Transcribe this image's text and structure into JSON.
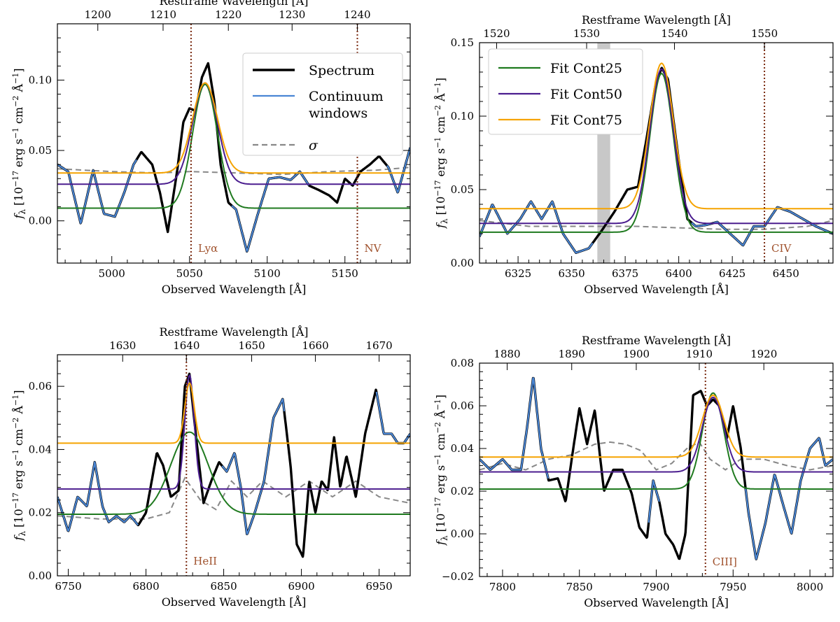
{
  "colors": {
    "spectrum": "#000000",
    "continuum": "#4a86d4",
    "sigma": "#888888",
    "fit_cont25": "#1f7a1f",
    "fit_cont50": "#4b1d8f",
    "fit_cont75": "#f5a300",
    "line_marker": "#7a2a10",
    "line_label": "#a0522d",
    "exclusion_band": "#c8c8c8"
  },
  "legends": {
    "left": [
      {
        "key": "spectrum",
        "label": "Spectrum"
      },
      {
        "key": "continuum",
        "label": "Continuum",
        "label2": "windows"
      },
      {
        "key": "sigma",
        "label": "σ"
      }
    ],
    "right": [
      {
        "key": "fit_cont25",
        "label": "Fit Cont25"
      },
      {
        "key": "fit_cont50",
        "label": "Fit Cont50"
      },
      {
        "key": "fit_cont75",
        "label": "Fit Cont75"
      }
    ]
  },
  "chart_data": [
    {
      "type": "line",
      "xlabel": "Observed Wavelength [Å]",
      "ylabel": "f_λ [10^-17 erg s^-1 cm^-2 Å^-1]",
      "top_xlabel": "Restframe Wavelength [Å]",
      "xlim": [
        4965,
        5192
      ],
      "ylim": [
        -0.03,
        0.14
      ],
      "xticks": [
        5000,
        5050,
        5100,
        5150
      ],
      "yticks": [
        0.0,
        0.05,
        0.1
      ],
      "ytick_labels": [
        "0.00",
        "0.05",
        "0.10"
      ],
      "top_ticks": [
        1200,
        1210,
        1220,
        1230,
        1240
      ],
      "top_tick_positions": [
        4991,
        5033,
        5075,
        5116,
        5158
      ],
      "lines": [
        {
          "x": 5051,
          "label": "Lyα"
        },
        {
          "x": 5158,
          "label": "NV"
        }
      ],
      "legend": "left",
      "spectrum": {
        "x": [
          4965,
          4972,
          4980,
          4988,
          4995,
          5002,
          5008,
          5014,
          5019,
          5026,
          5031,
          5036,
          5042,
          5046,
          5050,
          5054,
          5058,
          5062,
          5066,
          5070,
          5075,
          5080,
          5087,
          5094,
          5101,
          5108,
          5115,
          5121,
          5127,
          5133,
          5140,
          5145,
          5150,
          5155,
          5160,
          5166,
          5172,
          5178,
          5184,
          5192
        ],
        "y": [
          0.04,
          0.035,
          -0.002,
          0.036,
          0.005,
          0.003,
          0.02,
          0.04,
          0.049,
          0.04,
          0.02,
          -0.008,
          0.035,
          0.07,
          0.08,
          0.078,
          0.102,
          0.112,
          0.085,
          0.04,
          0.013,
          0.008,
          -0.022,
          0.005,
          0.03,
          0.031,
          0.029,
          0.035,
          0.025,
          0.022,
          0.018,
          0.013,
          0.03,
          0.025,
          0.035,
          0.04,
          0.046,
          0.038,
          0.02,
          0.052
        ]
      },
      "continuum_segments": [
        [
          4965,
          5016
        ],
        [
          5077,
          5127
        ],
        [
          5177,
          5192
        ]
      ],
      "sigma": {
        "x": [
          4965,
          5000,
          5030,
          5050,
          5080,
          5110,
          5140,
          5170,
          5192
        ],
        "y": [
          0.037,
          0.035,
          0.034,
          0.035,
          0.034,
          0.033,
          0.035,
          0.036,
          0.038
        ]
      },
      "fits": [
        {
          "key": "fit_cont25",
          "base": 0.009,
          "amp": 0.088,
          "center": 5060,
          "sigma": 8
        },
        {
          "key": "fit_cont50",
          "base": 0.026,
          "amp": 0.072,
          "center": 5060,
          "sigma": 8
        },
        {
          "key": "fit_cont75",
          "base": 0.034,
          "amp": 0.064,
          "center": 5060,
          "sigma": 8
        }
      ]
    },
    {
      "type": "line",
      "xlabel": "Observed Wavelength [Å]",
      "ylabel": "f_λ [10^-17 erg s^-1 cm^-2 Å^-1]",
      "top_xlabel": "Restframe Wavelength [Å]",
      "xlim": [
        6307,
        6472
      ],
      "ylim": [
        0.0,
        0.15
      ],
      "xticks": [
        6325,
        6350,
        6375,
        6400,
        6425,
        6450
      ],
      "yticks": [
        0.0,
        0.05,
        0.1,
        0.15
      ],
      "ytick_labels": [
        "0.00",
        "0.05",
        "0.10",
        "0.15"
      ],
      "top_ticks": [
        1520,
        1530,
        1540,
        1550
      ],
      "top_tick_positions": [
        6315,
        6357,
        6398,
        6440
      ],
      "lines": [
        {
          "x": 6440,
          "label": "CIV"
        }
      ],
      "exclusion_band": [
        6362,
        6368
      ],
      "legend": "right",
      "spectrum": {
        "x": [
          6307,
          6313,
          6320,
          6326,
          6331,
          6336,
          6341,
          6346,
          6352,
          6358,
          6364,
          6370,
          6376,
          6381,
          6385,
          6389,
          6392,
          6395,
          6400,
          6404,
          6408,
          6413,
          6418,
          6424,
          6430,
          6435,
          6440,
          6446,
          6452,
          6458,
          6464,
          6472
        ],
        "y": [
          0.018,
          0.04,
          0.02,
          0.03,
          0.042,
          0.03,
          0.042,
          0.02,
          0.007,
          0.01,
          0.022,
          0.035,
          0.05,
          0.052,
          0.085,
          0.12,
          0.133,
          0.125,
          0.07,
          0.03,
          0.025,
          0.026,
          0.028,
          0.02,
          0.012,
          0.025,
          0.025,
          0.038,
          0.035,
          0.03,
          0.025,
          0.02
        ]
      },
      "continuum_segments": [
        [
          6307,
          6360
        ],
        [
          6406,
          6472
        ]
      ],
      "sigma": {
        "x": [
          6307,
          6330,
          6360,
          6380,
          6400,
          6420,
          6440,
          6460,
          6472
        ],
        "y": [
          0.029,
          0.025,
          0.025,
          0.025,
          0.024,
          0.023,
          0.023,
          0.025,
          0.029
        ]
      },
      "fits": [
        {
          "key": "fit_cont25",
          "base": 0.021,
          "amp": 0.108,
          "center": 6392,
          "sigma": 5.5
        },
        {
          "key": "fit_cont50",
          "base": 0.027,
          "amp": 0.105,
          "center": 6392,
          "sigma": 5.5
        },
        {
          "key": "fit_cont75",
          "base": 0.037,
          "amp": 0.099,
          "center": 6392,
          "sigma": 5.5
        }
      ]
    },
    {
      "type": "line",
      "xlabel": "Observed Wavelength [Å]",
      "ylabel": "f_λ [10^-17 erg s^-1 cm^-2 Å^-1]",
      "top_xlabel": "Restframe Wavelength [Å]",
      "xlim": [
        6743,
        6970
      ],
      "ylim": [
        0.0,
        0.07
      ],
      "xticks": [
        6750,
        6800,
        6850,
        6900,
        6950
      ],
      "yticks": [
        0.0,
        0.02,
        0.04,
        0.06
      ],
      "ytick_labels": [
        "0.00",
        "0.02",
        "0.04",
        "0.06"
      ],
      "top_ticks": [
        1630,
        1640,
        1650,
        1660,
        1670
      ],
      "top_tick_positions": [
        6785,
        6826,
        6868,
        6909,
        6950
      ],
      "lines": [
        {
          "x": 6826,
          "label": "HeII"
        }
      ],
      "legend": null,
      "spectrum": {
        "x": [
          6743,
          6750,
          6756,
          6762,
          6767,
          6772,
          6776,
          6781,
          6786,
          6790,
          6795,
          6800,
          6807,
          6811,
          6816,
          6821,
          6825,
          6828,
          6832,
          6837,
          6842,
          6847,
          6852,
          6857,
          6861,
          6865,
          6870,
          6876,
          6882,
          6888,
          6893,
          6897,
          6901,
          6905,
          6909,
          6913,
          6917,
          6921,
          6925,
          6929,
          6935,
          6941,
          6948,
          6953,
          6958,
          6962,
          6966,
          6970
        ],
        "y": [
          0.025,
          0.014,
          0.025,
          0.022,
          0.036,
          0.022,
          0.017,
          0.019,
          0.017,
          0.019,
          0.016,
          0.02,
          0.039,
          0.035,
          0.025,
          0.027,
          0.06,
          0.064,
          0.045,
          0.023,
          0.03,
          0.036,
          0.033,
          0.039,
          0.028,
          0.013,
          0.02,
          0.03,
          0.05,
          0.056,
          0.035,
          0.01,
          0.006,
          0.03,
          0.02,
          0.03,
          0.027,
          0.044,
          0.028,
          0.038,
          0.025,
          0.045,
          0.059,
          0.045,
          0.045,
          0.042,
          0.042,
          0.045
        ]
      },
      "continuum_segments": [
        [
          6743,
          6795
        ],
        [
          6849,
          6889
        ],
        [
          6948,
          6970
        ]
      ],
      "sigma": {
        "x": [
          6743,
          6770,
          6800,
          6815,
          6825,
          6835,
          6845,
          6855,
          6865,
          6875,
          6890,
          6905,
          6920,
          6935,
          6950,
          6970
        ],
        "y": [
          0.019,
          0.018,
          0.018,
          0.02,
          0.031,
          0.024,
          0.021,
          0.03,
          0.025,
          0.03,
          0.025,
          0.03,
          0.025,
          0.03,
          0.025,
          0.023
        ]
      },
      "fits": [
        {
          "key": "fit_cont25",
          "base": 0.0195,
          "amp": 0.026,
          "center": 6828,
          "sigma": 12
        },
        {
          "key": "fit_cont50",
          "base": 0.0275,
          "amp": 0.036,
          "center": 6828,
          "sigma": 3
        },
        {
          "key": "fit_cont75",
          "base": 0.042,
          "amp": 0.019,
          "center": 6828,
          "sigma": 3
        }
      ]
    },
    {
      "type": "line",
      "xlabel": "Observed Wavelength [Å]",
      "ylabel": "f_λ [10^-17 erg s^-1 cm^-2 Å^-1]",
      "top_xlabel": "Restframe Wavelength [Å]",
      "xlim": [
        7785,
        8015
      ],
      "ylim": [
        -0.02,
        0.08
      ],
      "xticks": [
        7800,
        7850,
        7900,
        7950,
        8000
      ],
      "yticks": [
        -0.02,
        0.0,
        0.02,
        0.04,
        0.06,
        0.08
      ],
      "ytick_labels": [
        "−0.02",
        "0.00",
        "0.02",
        "0.04",
        "0.06",
        "0.08"
      ],
      "top_ticks": [
        1880,
        1890,
        1900,
        1910,
        1920
      ],
      "top_tick_positions": [
        7803,
        7845,
        7887,
        7928,
        7970
      ],
      "lines": [
        {
          "x": 7932,
          "label": "CIII]"
        }
      ],
      "legend": null,
      "spectrum": {
        "x": [
          7785,
          7792,
          7800,
          7806,
          7812,
          7816,
          7820,
          7825,
          7830,
          7836,
          7841,
          7846,
          7850,
          7855,
          7860,
          7866,
          7872,
          7878,
          7884,
          7889,
          7894,
          7898,
          7902,
          7906,
          7911,
          7915,
          7919,
          7924,
          7929,
          7933,
          7937,
          7941,
          7946,
          7950,
          7955,
          7960,
          7965,
          7971,
          7977,
          7982,
          7988,
          7994,
          8000,
          8006,
          8010,
          8015
        ],
        "y": [
          0.035,
          0.03,
          0.035,
          0.03,
          0.03,
          0.05,
          0.074,
          0.04,
          0.025,
          0.026,
          0.015,
          0.04,
          0.059,
          0.042,
          0.058,
          0.02,
          0.03,
          0.03,
          0.019,
          0.003,
          -0.002,
          0.025,
          0.015,
          0.0,
          -0.005,
          -0.012,
          0.0,
          0.065,
          0.067,
          0.06,
          0.063,
          0.06,
          0.045,
          0.06,
          0.04,
          0.01,
          -0.012,
          0.005,
          0.028,
          0.015,
          0.0,
          0.025,
          0.04,
          0.045,
          0.032,
          0.035
        ]
      },
      "continuum_segments": [
        [
          7785,
          7830
        ],
        [
          7895,
          7902
        ],
        [
          7958,
          8015
        ]
      ],
      "sigma": {
        "x": [
          7785,
          7800,
          7815,
          7830,
          7845,
          7860,
          7870,
          7880,
          7890,
          7900,
          7910,
          7920,
          7928,
          7935,
          7945,
          7955,
          7970,
          7985,
          8000,
          8015
        ],
        "y": [
          0.03,
          0.033,
          0.03,
          0.035,
          0.037,
          0.042,
          0.043,
          0.042,
          0.039,
          0.03,
          0.033,
          0.04,
          0.043,
          0.035,
          0.03,
          0.035,
          0.035,
          0.032,
          0.03,
          0.032
        ]
      },
      "fits": [
        {
          "key": "fit_cont25",
          "base": 0.021,
          "amp": 0.045,
          "center": 7937,
          "sigma": 7
        },
        {
          "key": "fit_cont50",
          "base": 0.029,
          "amp": 0.035,
          "center": 7937,
          "sigma": 7
        },
        {
          "key": "fit_cont75",
          "base": 0.036,
          "amp": 0.029,
          "center": 7937,
          "sigma": 7
        }
      ]
    }
  ]
}
